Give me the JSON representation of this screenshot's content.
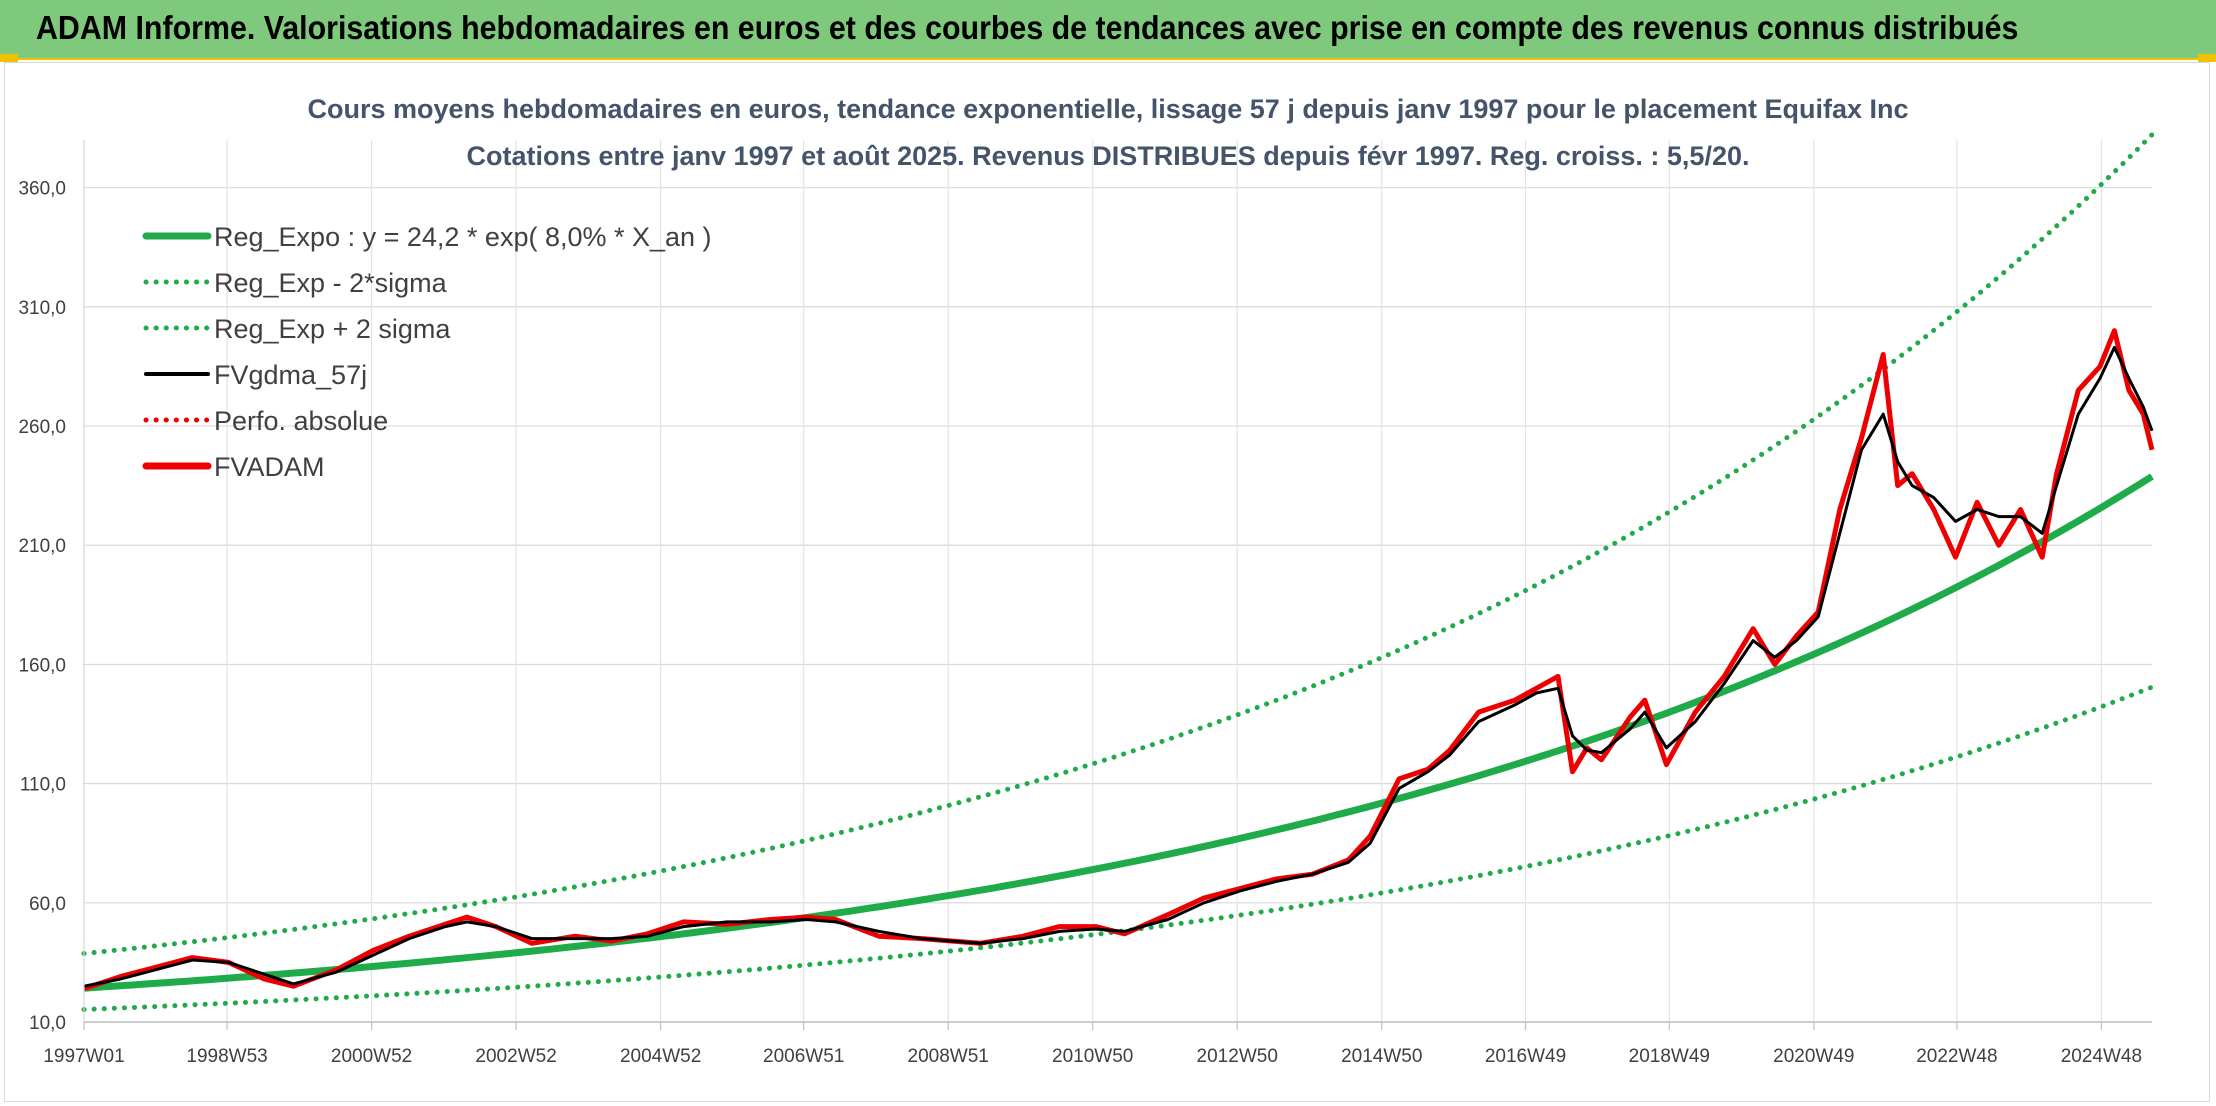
{
  "banner": {
    "title": "ADAM Informe. Valorisations hebdomadaires en euros et des courbes de tendances avec prise en compte des revenus connus distribués"
  },
  "colors": {
    "banner_bg": "#7fc97c",
    "accent_yellow": "#f2c200",
    "trend_green": "#1fab4a",
    "price_red": "#ee0000",
    "smooth_black": "#000000",
    "title_text": "#44546a"
  },
  "chart_data": {
    "type": "line",
    "title": "Cours moyens hebdomadaires en euros, tendance exponentielle, lissage 57 j depuis janv 1997 pour le placement Equifax Inc",
    "subtitle": "Cotations entre janv 1997 et août 2025. Revenus DISTRIBUES depuis févr 1997. Reg. croiss. : 5,5/20.",
    "xlabel": "",
    "ylabel": "",
    "ylim": [
      10,
      380
    ],
    "xlim": [
      1997.0,
      2025.62
    ],
    "y_ticks": [
      10,
      60,
      110,
      160,
      210,
      260,
      310,
      360
    ],
    "y_tick_labels": [
      "10,0",
      "60,0",
      "110,0",
      "160,0",
      "210,0",
      "260,0",
      "310,0",
      "360,0"
    ],
    "x_ticks": [
      1997.0,
      1998.98,
      2000.98,
      2002.98,
      2004.98,
      2006.96,
      2008.96,
      2010.96,
      2012.96,
      2014.96,
      2016.95,
      2018.94,
      2020.94,
      2022.92,
      2024.92
    ],
    "x_tick_labels": [
      "1997W01",
      "1998W53",
      "2000W52",
      "2002W52",
      "2004W52",
      "2006W51",
      "2008W51",
      "2010W50",
      "2012W50",
      "2014W50",
      "2016W49",
      "2018W49",
      "2020W49",
      "2022W48",
      "2024W48"
    ],
    "grid": true,
    "legend_position": "top-left",
    "legend": [
      {
        "label": "Reg_Expo : y = 24,2 * exp( 8,0% *  X_an )",
        "color": "#1fab4a",
        "style": "solid-thick"
      },
      {
        "label": "Reg_Exp - 2*sigma",
        "color": "#1fab4a",
        "style": "dotted"
      },
      {
        "label": "Reg_Exp + 2 sigma",
        "color": "#1fab4a",
        "style": "dotted"
      },
      {
        "label": "FVgdma_57j",
        "color": "#000000",
        "style": "solid"
      },
      {
        "label": "Perfo. absolue",
        "color": "#ee0000",
        "style": "dotted"
      },
      {
        "label": "FVADAM",
        "color": "#ee0000",
        "style": "solid-thick"
      }
    ],
    "trend": {
      "a": 24.2,
      "rate": 0.08,
      "upper_factor": 1.6,
      "lower_factor": 0.63
    },
    "series": [
      {
        "name": "FVADAM",
        "x": [
          1997.0,
          1997.5,
          1998.0,
          1998.5,
          1999.0,
          1999.5,
          1999.9,
          2000.5,
          2001.0,
          2001.5,
          2002.0,
          2002.3,
          2002.7,
          2003.2,
          2003.8,
          2004.3,
          2004.8,
          2005.3,
          2005.9,
          2006.5,
          2007.0,
          2007.4,
          2008.0,
          2008.6,
          2009.0,
          2009.4,
          2010.0,
          2010.5,
          2011.0,
          2011.4,
          2012.0,
          2012.5,
          2013.0,
          2013.5,
          2014.0,
          2014.5,
          2014.8,
          2015.2,
          2015.6,
          2015.9,
          2016.3,
          2016.8,
          2017.1,
          2017.4,
          2017.6,
          2017.8,
          2018.0,
          2018.4,
          2018.6,
          2018.9,
          2019.3,
          2019.7,
          2020.1,
          2020.4,
          2020.7,
          2021.0,
          2021.3,
          2021.6,
          2021.9,
          2022.1,
          2022.3,
          2022.6,
          2022.9,
          2023.2,
          2023.5,
          2023.8,
          2024.1,
          2024.3,
          2024.6,
          2024.9,
          2025.1,
          2025.3,
          2025.5,
          2025.62
        ],
        "values": [
          24,
          29,
          33,
          37,
          35,
          28,
          25,
          32,
          40,
          46,
          51,
          54,
          50,
          43,
          46,
          44,
          47,
          52,
          51,
          53,
          54,
          53,
          46,
          45,
          44,
          43,
          46,
          50,
          50,
          47,
          55,
          62,
          66,
          70,
          72,
          78,
          88,
          112,
          116,
          124,
          140,
          145,
          150,
          155,
          115,
          125,
          120,
          138,
          145,
          118,
          140,
          155,
          175,
          160,
          172,
          182,
          225,
          255,
          290,
          235,
          240,
          225,
          205,
          228,
          210,
          225,
          205,
          240,
          275,
          285,
          300,
          275,
          265,
          250
        ]
      },
      {
        "name": "FVgdma_57j",
        "x": [
          1997.0,
          1997.5,
          1998.0,
          1998.5,
          1999.0,
          1999.5,
          1999.9,
          2000.5,
          2001.0,
          2001.5,
          2002.0,
          2002.3,
          2002.7,
          2003.2,
          2003.8,
          2004.3,
          2004.8,
          2005.3,
          2005.9,
          2006.5,
          2007.0,
          2007.4,
          2008.0,
          2008.6,
          2009.0,
          2009.4,
          2010.0,
          2010.5,
          2011.0,
          2011.4,
          2012.0,
          2012.5,
          2013.0,
          2013.5,
          2014.0,
          2014.5,
          2014.8,
          2015.2,
          2015.6,
          2015.9,
          2016.3,
          2016.8,
          2017.1,
          2017.4,
          2017.6,
          2017.8,
          2018.0,
          2018.4,
          2018.6,
          2018.9,
          2019.3,
          2019.7,
          2020.1,
          2020.4,
          2020.7,
          2021.0,
          2021.3,
          2021.6,
          2021.9,
          2022.1,
          2022.3,
          2022.6,
          2022.9,
          2023.2,
          2023.5,
          2023.8,
          2024.1,
          2024.3,
          2024.6,
          2024.9,
          2025.1,
          2025.3,
          2025.5,
          2025.62
        ],
        "values": [
          25,
          28,
          32,
          36,
          35,
          30,
          26,
          31,
          38,
          45,
          50,
          52,
          50,
          45,
          45,
          45,
          46,
          50,
          52,
          52,
          53,
          52,
          48,
          45,
          44,
          43,
          45,
          48,
          49,
          48,
          53,
          60,
          65,
          69,
          72,
          77,
          85,
          108,
          115,
          122,
          136,
          143,
          148,
          150,
          130,
          124,
          123,
          133,
          140,
          125,
          136,
          152,
          170,
          163,
          170,
          180,
          215,
          250,
          265,
          245,
          235,
          230,
          220,
          225,
          222,
          222,
          215,
          235,
          265,
          280,
          293,
          280,
          268,
          258
        ]
      }
    ]
  }
}
